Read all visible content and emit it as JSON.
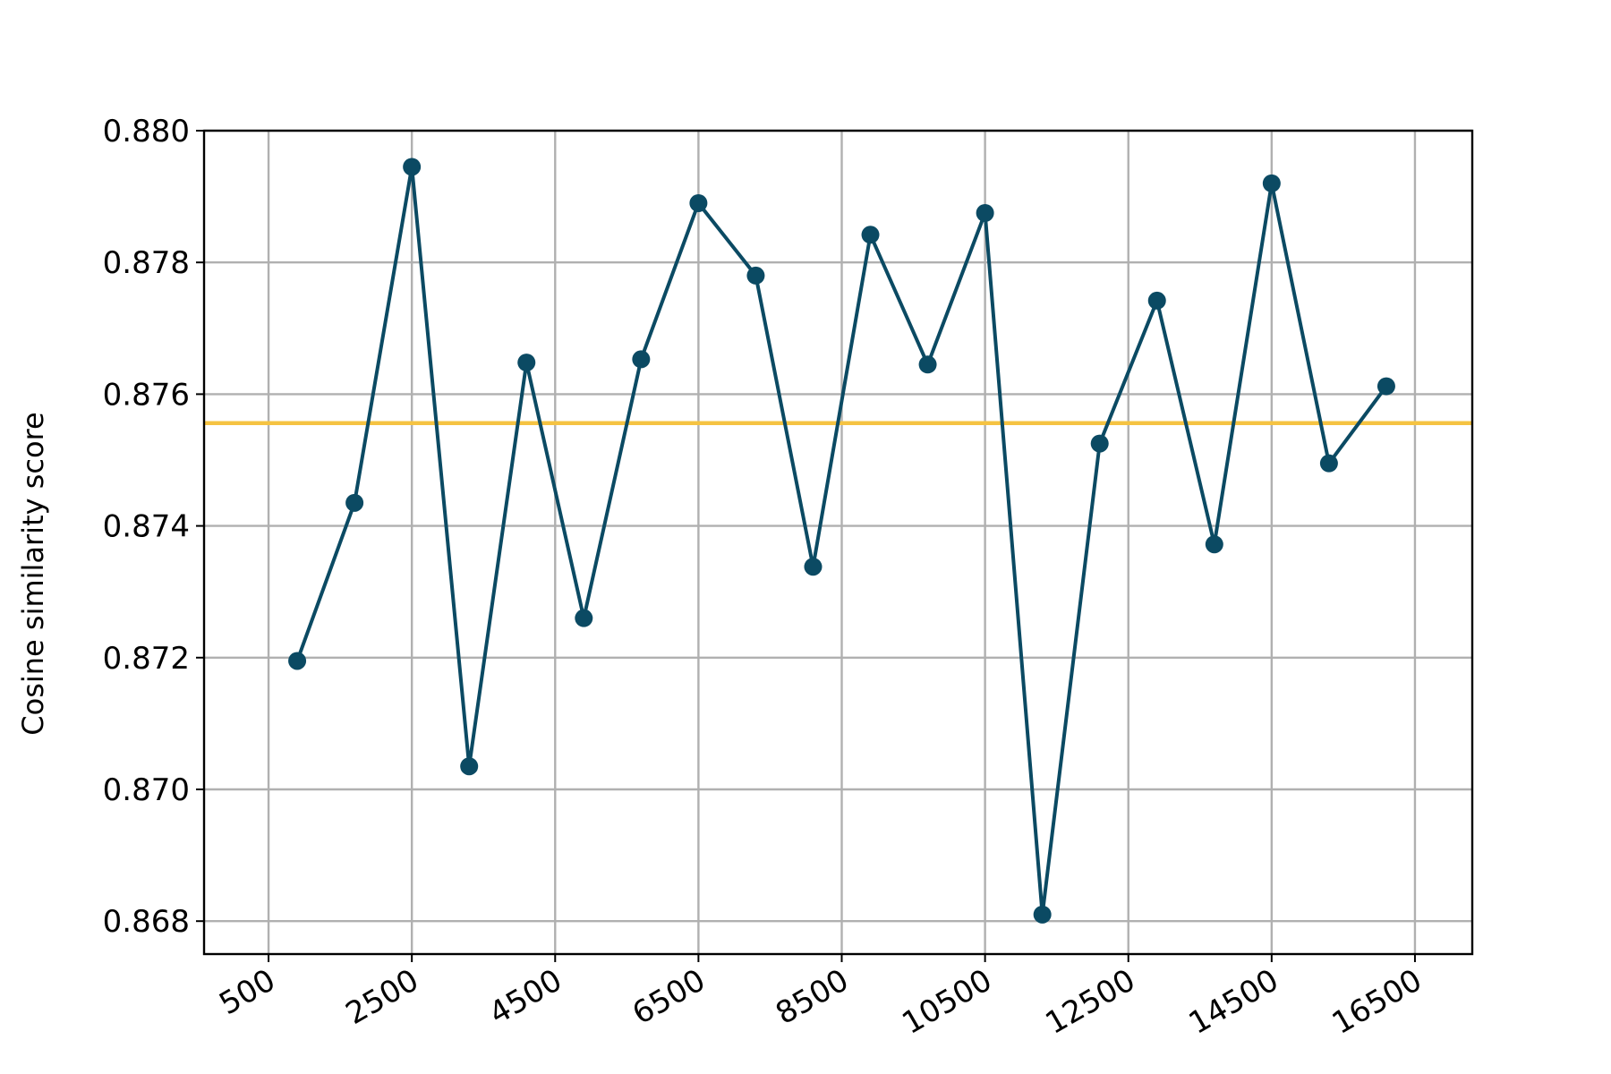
{
  "chart_data": {
    "type": "line",
    "title": "",
    "xlabel": "",
    "ylabel": "Cosine similarity score",
    "xlim": [
      -400,
      17300
    ],
    "ylim": [
      0.8675,
      0.88
    ],
    "xticks": [
      500,
      2500,
      4500,
      6500,
      8500,
      10500,
      12500,
      14500,
      16500
    ],
    "xtick_labels": [
      "500",
      "2500",
      "4500",
      "6500",
      "8500",
      "10500",
      "12500",
      "14500",
      "16500"
    ],
    "yticks": [
      0.868,
      0.87,
      0.872,
      0.874,
      0.876,
      0.878,
      0.88
    ],
    "ytick_labels": [
      "0.868",
      "0.870",
      "0.872",
      "0.874",
      "0.876",
      "0.878",
      "0.880"
    ],
    "grid": true,
    "series": [
      {
        "x": [
          900,
          1700,
          2500,
          3300,
          4100,
          4900,
          5700,
          6500,
          7300,
          8100,
          8900,
          9700,
          10500,
          11300,
          12100,
          12900,
          13700,
          14500,
          15300,
          16100
        ],
        "y": [
          0.87195,
          0.87435,
          0.87945,
          0.87035,
          0.87648,
          0.8726,
          0.87653,
          0.8789,
          0.8778,
          0.87338,
          0.87842,
          0.87645,
          0.87875,
          0.8681,
          0.87525,
          0.87742,
          0.87372,
          0.8792,
          0.87495,
          0.87612
        ],
        "color": "#0b4a63",
        "marker": "circle"
      }
    ],
    "reference_line": {
      "y": 0.87556,
      "color": "#f5c342"
    }
  }
}
